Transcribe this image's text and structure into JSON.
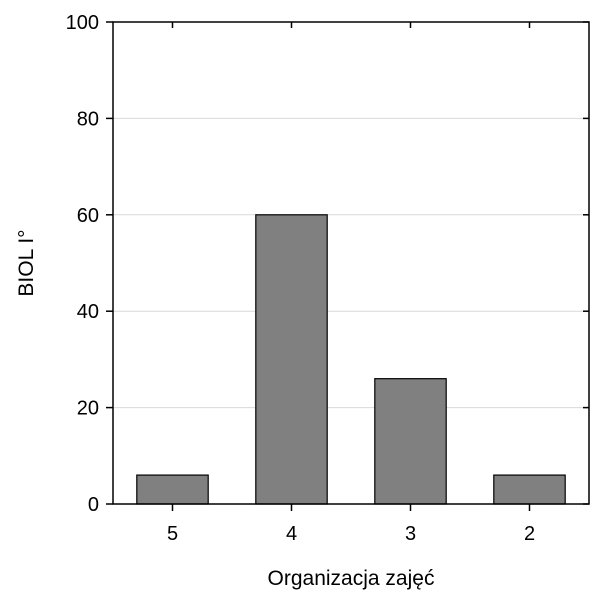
{
  "chart_data": {
    "type": "bar",
    "categories": [
      "5",
      "4",
      "3",
      "2"
    ],
    "values": [
      6,
      60,
      26,
      6
    ],
    "title": "",
    "xlabel": "Organizacja zajęć",
    "ylabel": "BIOL I°",
    "ylim": [
      0,
      100
    ],
    "yticks": [
      0,
      20,
      40,
      60,
      80,
      100
    ],
    "grid": true,
    "legend": "none",
    "colors": {
      "bar_fill": "#808080",
      "bar_stroke": "#000000",
      "grid": "#d9d9d9",
      "axis": "#000000"
    }
  }
}
